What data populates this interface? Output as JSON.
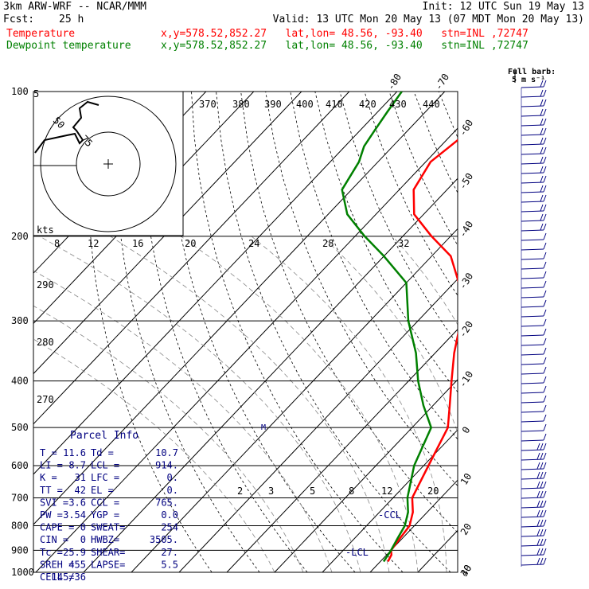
{
  "header": {
    "model": "3km ARW-WRF -- NCAR/MMM",
    "init": "Init: 12 UTC Sun 19 May 13",
    "fcst_label": "Fcst:",
    "fcst_value": "25 h",
    "valid": "Valid: 13 UTC Mon 20 May 13 (07 MDT Mon 20 May 13)",
    "temp_label": "Temperature",
    "dew_label": "Dewpoint temperature",
    "location": "x,y=578.52,852.27   lat,lon= 48.56, -93.40   stn=INL ,72747"
  },
  "barb_legend": {
    "title": "Full barb:",
    "value": "5 m s⁻¹"
  },
  "hodograph": {
    "units": "kts",
    "rings": [
      "5",
      "50",
      "75"
    ]
  },
  "parcel_info": {
    "title": "Parcel Info",
    "rows": [
      [
        "T  =",
        "11.6",
        "Td =",
        "10.7"
      ],
      [
        "LI =",
        "8.7",
        "LCL =",
        "914."
      ],
      [
        "K  =",
        "31",
        "LFC =",
        "0."
      ],
      [
        "TT =",
        "42",
        "EL  =",
        "0."
      ],
      [
        "SVI =",
        "3.6",
        "CCL =",
        "765."
      ],
      [
        "PW =",
        "3.54",
        "YGP =",
        "0.0"
      ],
      [
        "CAPE =",
        "0",
        "SWEAT=",
        "254"
      ],
      [
        "CIN =",
        "0",
        "HWBZ=",
        "3505."
      ],
      [
        "Tc =",
        "25.9",
        "SHEAR=",
        "27."
      ],
      [
        "SREH =",
        "455",
        "LAPSE=",
        "5.5"
      ],
      [
        "CELL =",
        "145/36",
        "",
        ""
      ]
    ]
  },
  "annotations": {
    "ccl": "-CCL",
    "lcl": "-LCL"
  },
  "colors": {
    "temperature": "#ff0000",
    "dewpoint": "#008000",
    "barbs": "#000080",
    "text_blue": "#000080"
  },
  "chart_data": {
    "type": "line",
    "title": "",
    "xlabel": "",
    "ylabel": "",
    "y_scale": "log",
    "ylim": [
      1000,
      100
    ],
    "pressure_ticks": [
      "100",
      "200",
      "300",
      "400",
      "500",
      "600",
      "700",
      "800",
      "900",
      "1000"
    ],
    "temperature_ticks": [
      "-80",
      "-70",
      "-60",
      "-50",
      "-40",
      "-30",
      "-20",
      "-10",
      "0",
      "10",
      "20",
      "30",
      "40"
    ],
    "theta_labels": [
      "370",
      "380",
      "390",
      "400",
      "410",
      "420",
      "430",
      "440",
      "290",
      "280",
      "270"
    ],
    "mixing_ratio_labels_top": [
      "8",
      "12",
      "16",
      "20",
      "24",
      "28",
      "32"
    ],
    "mixing_ratio_labels_bottom": [
      "2",
      "3",
      "5",
      "8",
      "12",
      "20"
    ],
    "series": [
      {
        "name": "Temperature",
        "x": [
          11.6,
          11.0,
          10.0,
          9.5,
          9.0,
          7.0,
          4.0,
          1.0,
          -2.5,
          -6.5,
          -11.0,
          -16.0,
          -21.0,
          -29.0,
          -36.0,
          -44.0,
          -52.0,
          -57.0,
          -59.0,
          -58.0,
          -57.0,
          -55.0,
          -53.0
        ],
        "y": [
          950,
          920,
          900,
          850,
          800,
          750,
          700,
          600,
          500,
          450,
          400,
          350,
          300,
          250,
          220,
          200,
          180,
          160,
          140,
          130,
          120,
          110,
          100
        ]
      },
      {
        "name": "Dewpoint temperature",
        "x": [
          10.7,
          10.3,
          10.0,
          9.0,
          8.0,
          6.0,
          3.0,
          -2.0,
          -6.0,
          -12.0,
          -18.0,
          -24.0,
          -32.0,
          -40.0,
          -50.0,
          -58.0,
          -66.0,
          -72.0,
          -74.0,
          -76.0,
          -77.0,
          -78.0,
          -79.0
        ],
        "y": [
          950,
          920,
          900,
          850,
          800,
          750,
          700,
          600,
          500,
          450,
          400,
          350,
          300,
          250,
          220,
          200,
          180,
          160,
          140,
          130,
          120,
          110,
          100
        ]
      }
    ]
  }
}
